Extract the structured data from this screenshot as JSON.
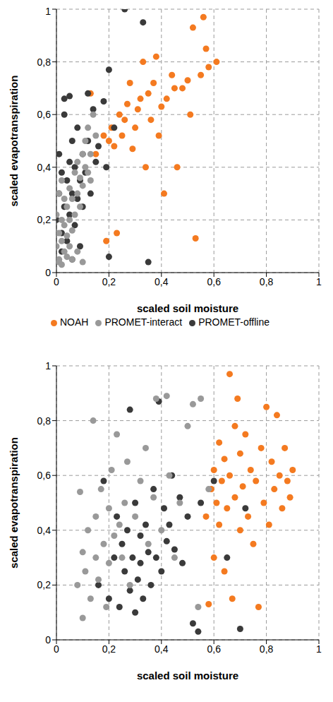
{
  "chart_data": [
    {
      "type": "scatter",
      "x_label": "scaled soil moisture",
      "y_label": "scaled evapotranspiration",
      "xlim": [
        0,
        1
      ],
      "ylim": [
        0,
        1
      ],
      "xticks": [
        0,
        {
          "value": 0.2,
          "label": "0,2"
        },
        {
          "value": 0.4,
          "label": "0,4"
        },
        {
          "value": 0.6,
          "label": "0,6"
        },
        {
          "value": 0.8,
          "label": "0,8"
        },
        1
      ],
      "yticks": [
        0,
        {
          "value": 0.2,
          "label": "0,2"
        },
        {
          "value": 0.4,
          "label": "0,4"
        },
        {
          "value": 0.6,
          "label": "0,6"
        },
        {
          "value": 0.8,
          "label": "0,8"
        },
        1
      ],
      "grid": true,
      "legend": "bottom",
      "series": [
        {
          "name": "NOAH",
          "color": "#f47a20",
          "x": [
            0.13,
            0.15,
            0.18,
            0.19,
            0.2,
            0.21,
            0.22,
            0.23,
            0.24,
            0.25,
            0.26,
            0.27,
            0.28,
            0.29,
            0.3,
            0.31,
            0.32,
            0.33,
            0.34,
            0.35,
            0.36,
            0.37,
            0.38,
            0.39,
            0.4,
            0.41,
            0.42,
            0.44,
            0.45,
            0.46,
            0.48,
            0.5,
            0.51,
            0.52,
            0.53,
            0.55,
            0.56,
            0.57,
            0.58,
            0.61
          ],
          "values": [
            0.68,
            0.45,
            0.52,
            0.12,
            0.5,
            0.55,
            0.48,
            0.15,
            0.6,
            0.52,
            0.58,
            0.64,
            0.72,
            0.47,
            0.55,
            0.62,
            0.66,
            0.8,
            0.4,
            0.68,
            0.58,
            0.72,
            0.82,
            0.52,
            0.63,
            0.3,
            0.66,
            0.75,
            0.7,
            0.4,
            0.7,
            0.73,
            0.6,
            0.93,
            0.13,
            0.75,
            0.97,
            0.85,
            0.78,
            0.8
          ]
        },
        {
          "name": "PROMET-offline",
          "color": "#3a3a3a",
          "x": [
            0.0,
            0.01,
            0.01,
            0.02,
            0.02,
            0.03,
            0.03,
            0.04,
            0.04,
            0.05,
            0.05,
            0.06,
            0.06,
            0.07,
            0.07,
            0.08,
            0.08,
            0.09,
            0.1,
            0.1,
            0.11,
            0.12,
            0.13,
            0.14,
            0.15,
            0.16,
            0.18,
            0.2,
            0.2,
            0.22,
            0.03,
            0.05,
            0.02,
            0.09,
            0.19,
            0.26,
            0.33,
            0.35,
            0.12,
            0.06
          ],
          "values": [
            0.2,
            0.3,
            0.45,
            0.15,
            0.38,
            0.25,
            0.6,
            0.35,
            0.12,
            0.42,
            0.22,
            0.3,
            0.5,
            0.18,
            0.4,
            0.28,
            0.55,
            0.35,
            0.45,
            0.25,
            0.38,
            0.5,
            0.3,
            0.62,
            0.42,
            0.48,
            0.65,
            0.77,
            0.06,
            0.55,
            0.66,
            0.67,
            0.08,
            0.1,
            0.4,
            1.0,
            0.95,
            0.04,
            0.68,
            0.05
          ]
        },
        {
          "name": "PROMET-interact",
          "color": "#999999",
          "x": [
            0.0,
            0.0,
            0.01,
            0.01,
            0.01,
            0.02,
            0.02,
            0.02,
            0.03,
            0.03,
            0.03,
            0.04,
            0.04,
            0.05,
            0.05,
            0.05,
            0.06,
            0.06,
            0.07,
            0.07,
            0.08,
            0.08,
            0.09,
            0.09,
            0.1,
            0.1,
            0.11,
            0.11,
            0.12,
            0.12,
            0.13,
            0.14,
            0.15,
            0.01,
            0.02,
            0.04,
            0.06,
            0.08,
            0.1,
            0.13
          ],
          "values": [
            0.1,
            0.22,
            0.05,
            0.15,
            0.3,
            0.12,
            0.2,
            0.35,
            0.08,
            0.18,
            0.28,
            0.14,
            0.25,
            0.1,
            0.2,
            0.32,
            0.16,
            0.28,
            0.22,
            0.38,
            0.3,
            0.42,
            0.25,
            0.36,
            0.33,
            0.45,
            0.4,
            0.5,
            0.38,
            0.55,
            0.45,
            0.6,
            0.52,
            0.04,
            0.03,
            0.06,
            0.05,
            0.08,
            0.04,
            0.35
          ]
        }
      ]
    },
    {
      "type": "scatter",
      "x_label": "scaled soil moisture",
      "y_label": "scaled evapotranspiration",
      "xlim": [
        0,
        1
      ],
      "ylim": [
        0,
        1
      ],
      "xticks": [
        0,
        {
          "value": 0.2,
          "label": "0,2"
        },
        {
          "value": 0.4,
          "label": "0,4"
        },
        {
          "value": 0.6,
          "label": "0,6"
        },
        {
          "value": 0.8,
          "label": "0,8"
        },
        1
      ],
      "yticks": [
        0,
        {
          "value": 0.2,
          "label": "0,2"
        },
        {
          "value": 0.4,
          "label": "0,4"
        },
        {
          "value": 0.6,
          "label": "0,6"
        },
        {
          "value": 0.8,
          "label": "0,8"
        },
        1
      ],
      "grid": true,
      "series": [
        {
          "name": "NOAH",
          "color": "#f47a20",
          "x": [
            0.57,
            0.58,
            0.59,
            0.6,
            0.6,
            0.61,
            0.62,
            0.62,
            0.63,
            0.64,
            0.64,
            0.65,
            0.66,
            0.66,
            0.67,
            0.68,
            0.68,
            0.69,
            0.7,
            0.7,
            0.71,
            0.72,
            0.73,
            0.74,
            0.75,
            0.76,
            0.77,
            0.78,
            0.79,
            0.8,
            0.81,
            0.82,
            0.83,
            0.84,
            0.85,
            0.86,
            0.87,
            0.88,
            0.89,
            0.9
          ],
          "values": [
            0.45,
            0.13,
            0.55,
            0.3,
            0.62,
            0.5,
            0.72,
            0.42,
            0.58,
            0.25,
            0.66,
            0.48,
            0.97,
            0.6,
            0.15,
            0.78,
            0.52,
            0.88,
            0.4,
            0.68,
            0.56,
            0.75,
            0.45,
            0.62,
            0.35,
            0.58,
            0.12,
            0.7,
            0.5,
            0.85,
            0.42,
            0.65,
            0.55,
            0.82,
            0.6,
            0.48,
            0.7,
            0.58,
            0.52,
            0.62
          ]
        },
        {
          "name": "PROMET-offline",
          "color": "#3a3a3a",
          "x": [
            0.16,
            0.18,
            0.2,
            0.22,
            0.23,
            0.24,
            0.25,
            0.26,
            0.27,
            0.28,
            0.28,
            0.29,
            0.3,
            0.3,
            0.31,
            0.32,
            0.32,
            0.33,
            0.34,
            0.35,
            0.36,
            0.37,
            0.38,
            0.39,
            0.4,
            0.41,
            0.42,
            0.43,
            0.44,
            0.45,
            0.47,
            0.48,
            0.5,
            0.52,
            0.54,
            0.55,
            0.6,
            0.65,
            0.7,
            0.72
          ],
          "values": [
            0.2,
            0.58,
            0.15,
            0.3,
            0.45,
            0.12,
            0.35,
            0.25,
            0.4,
            0.18,
            0.84,
            0.3,
            0.1,
            0.5,
            0.22,
            0.28,
            0.38,
            0.15,
            0.42,
            0.32,
            0.2,
            0.55,
            0.3,
            0.87,
            0.25,
            0.48,
            0.36,
            0.42,
            0.6,
            0.33,
            0.52,
            0.28,
            0.45,
            0.06,
            0.03,
            0.5,
            0.58,
            0.3,
            0.04,
            0.48
          ]
        },
        {
          "name": "PROMET-interact",
          "color": "#999999",
          "x": [
            0.08,
            0.09,
            0.1,
            0.1,
            0.11,
            0.12,
            0.13,
            0.14,
            0.15,
            0.15,
            0.16,
            0.17,
            0.18,
            0.19,
            0.2,
            0.2,
            0.21,
            0.22,
            0.23,
            0.24,
            0.25,
            0.26,
            0.27,
            0.28,
            0.3,
            0.32,
            0.34,
            0.35,
            0.37,
            0.38,
            0.4,
            0.42,
            0.43,
            0.45,
            0.47,
            0.5,
            0.52,
            0.54,
            0.55,
            0.58
          ],
          "values": [
            0.2,
            0.54,
            0.08,
            0.32,
            0.25,
            0.4,
            0.15,
            0.8,
            0.3,
            0.45,
            0.22,
            0.55,
            0.35,
            0.12,
            0.48,
            0.28,
            0.62,
            0.38,
            0.75,
            0.42,
            0.3,
            0.5,
            0.65,
            0.2,
            0.45,
            0.58,
            0.7,
            0.35,
            0.52,
            0.88,
            0.4,
            0.89,
            0.6,
            0.3,
            0.5,
            0.78,
            0.86,
            0.12,
            0.88,
            0.55
          ]
        }
      ]
    }
  ]
}
